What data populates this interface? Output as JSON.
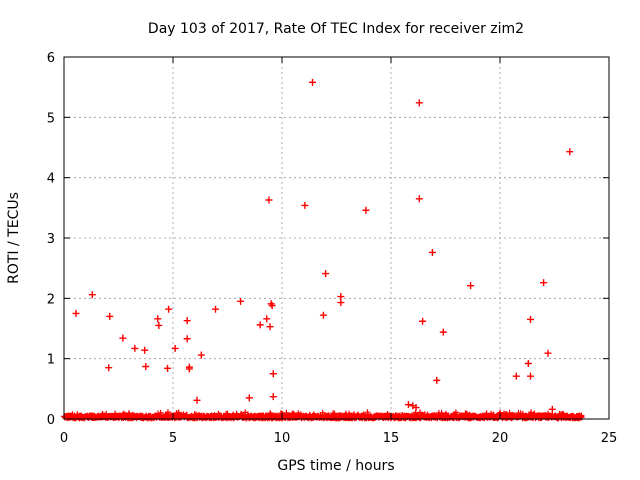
{
  "chart_data": {
    "type": "scatter",
    "title": "Day 103 of 2017, Rate Of TEC Index for receiver zim2",
    "xlabel": "GPS time / hours",
    "ylabel": "ROTI / TECUs",
    "xlim": [
      0,
      25
    ],
    "ylim": [
      0,
      6
    ],
    "xticks": [
      "0",
      "5",
      "10",
      "15",
      "20",
      "25"
    ],
    "yticks": [
      "0",
      "1",
      "2",
      "3",
      "4",
      "5",
      "6"
    ],
    "grid": true,
    "marker": "plus",
    "color": "#ff0000",
    "baseline": {
      "x_range": [
        0,
        23.75
      ],
      "note": "dense band of low ROTI values between 0 and about 0.1"
    },
    "series": [
      {
        "name": "zim2",
        "points": [
          [
            0.55,
            1.75
          ],
          [
            1.3,
            2.06
          ],
          [
            2.1,
            1.7
          ],
          [
            2.05,
            0.85
          ],
          [
            2.7,
            1.34
          ],
          [
            3.25,
            1.17
          ],
          [
            3.7,
            1.14
          ],
          [
            3.75,
            0.87
          ],
          [
            4.3,
            1.66
          ],
          [
            4.35,
            1.55
          ],
          [
            4.8,
            1.82
          ],
          [
            4.75,
            0.84
          ],
          [
            5.1,
            1.17
          ],
          [
            5.65,
            1.63
          ],
          [
            5.65,
            1.33
          ],
          [
            5.75,
            0.86
          ],
          [
            5.75,
            0.83
          ],
          [
            6.1,
            0.31
          ],
          [
            6.3,
            1.06
          ],
          [
            6.95,
            1.82
          ],
          [
            8.1,
            1.95
          ],
          [
            8.5,
            0.35
          ],
          [
            9.0,
            1.56
          ],
          [
            9.3,
            1.66
          ],
          [
            9.4,
            3.63
          ],
          [
            9.45,
            1.53
          ],
          [
            9.5,
            1.91
          ],
          [
            9.55,
            1.88
          ],
          [
            9.6,
            0.75
          ],
          [
            9.6,
            0.37
          ],
          [
            11.05,
            3.54
          ],
          [
            11.4,
            5.58
          ],
          [
            11.9,
            1.72
          ],
          [
            12.0,
            2.41
          ],
          [
            12.7,
            2.03
          ],
          [
            12.7,
            1.93
          ],
          [
            13.85,
            3.46
          ],
          [
            15.8,
            0.24
          ],
          [
            16.0,
            0.22
          ],
          [
            16.15,
            0.19
          ],
          [
            16.3,
            5.24
          ],
          [
            16.3,
            3.65
          ],
          [
            16.45,
            1.62
          ],
          [
            16.9,
            2.76
          ],
          [
            17.1,
            0.64
          ],
          [
            17.4,
            1.44
          ],
          [
            18.65,
            2.21
          ],
          [
            20.75,
            0.71
          ],
          [
            21.3,
            0.92
          ],
          [
            21.4,
            1.65
          ],
          [
            21.4,
            0.71
          ],
          [
            22.0,
            2.26
          ],
          [
            22.2,
            1.09
          ],
          [
            22.4,
            0.16
          ],
          [
            23.2,
            4.43
          ]
        ]
      }
    ]
  }
}
